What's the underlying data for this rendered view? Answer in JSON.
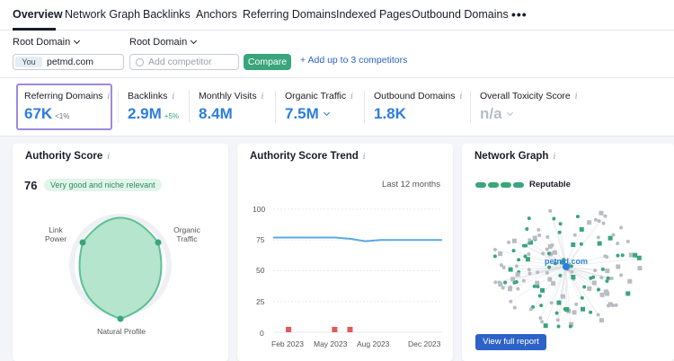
{
  "tabs": [
    {
      "label": "Overview",
      "active": true
    },
    {
      "label": "Network Graph"
    },
    {
      "label": "Backlinks"
    },
    {
      "label": "Anchors"
    },
    {
      "label": "Referring Domains"
    },
    {
      "label": "Indexed Pages"
    },
    {
      "label": "Outbound Domains"
    }
  ],
  "more_label": "•••",
  "filters": {
    "root_domain_label": "Root Domain",
    "competitor_root_label": "Root Domain",
    "you_tag": "You",
    "domain": "petmd.com",
    "competitor_placeholder": "Add competitor",
    "compare_label": "Compare",
    "add_competitors": "+  Add up to 3 competitors"
  },
  "metrics": [
    {
      "label": "Referring Domains",
      "value": "67K",
      "sub": "<1%"
    },
    {
      "label": "Backlinks",
      "value": "2.9M",
      "sub": "+5%"
    },
    {
      "label": "Monthly Visits",
      "value": "8.4M"
    },
    {
      "label": "Organic Traffic",
      "value": "7.5M",
      "has_chevron": true
    },
    {
      "label": "Outbound Domains",
      "value": "1.8K"
    },
    {
      "label": "Overall Toxicity Score",
      "value": "n/a",
      "has_chevron": true
    }
  ],
  "info_glyph": "i",
  "authority": {
    "title": "Authority Score",
    "score": "76",
    "badge": "Very good and niche relevant",
    "label_link_power_1": "Link",
    "label_link_power_2": "Power",
    "label_organic_1": "Organic",
    "label_organic_2": "Traffic",
    "label_natural": "Natural Profile",
    "accent": "#3aa57c"
  },
  "trend": {
    "title": "Authority Score Trend",
    "range": "Last 12 months",
    "y_ticks": [
      "100",
      "75",
      "50",
      "25",
      "0"
    ],
    "x_ticks": [
      "Feb 2023",
      "May 2023",
      "Aug 2023",
      "Dec 2023"
    ]
  },
  "chart_data": {
    "type": "line",
    "title": "Authority Score Trend",
    "ylim": [
      0,
      100
    ],
    "x": [
      "Jan 2023",
      "Feb 2023",
      "Mar 2023",
      "Apr 2023",
      "May 2023",
      "Jun 2023",
      "Jul 2023",
      "Aug 2023",
      "Sep 2023",
      "Oct 2023",
      "Nov 2023",
      "Dec 2023"
    ],
    "series": [
      {
        "values": [
          77,
          77,
          77,
          77,
          77,
          76,
          74,
          75,
          75,
          75,
          75,
          75
        ]
      }
    ],
    "markers": [
      "Feb 2023",
      "May 2023",
      "Jun 2023"
    ],
    "line_color": "#5aa9e6",
    "marker_color": "#e05a5a"
  },
  "network": {
    "title": "Network Graph",
    "status": "Reputable",
    "center_label": "petmd.com",
    "button": "View full report",
    "accent": "#3aa57c",
    "link_color": "#2d63c8"
  }
}
